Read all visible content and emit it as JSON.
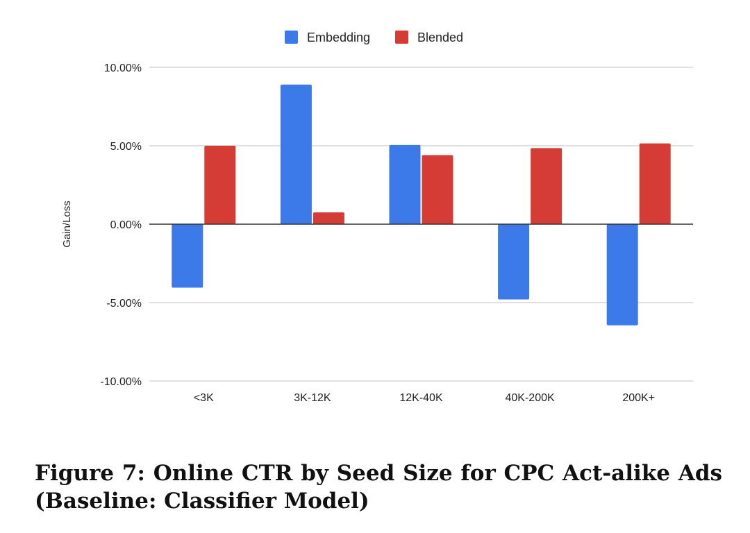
{
  "chart_data": {
    "type": "bar",
    "title": "",
    "xlabel": "",
    "ylabel": "Gain/Loss",
    "categories": [
      "<3K",
      "3K-12K",
      "12K-40K",
      "40K-200K",
      "200K+"
    ],
    "series": [
      {
        "name": "Embedding",
        "color": "#3b7ae8",
        "values": [
          -4.05,
          8.9,
          5.05,
          -4.8,
          -6.45
        ]
      },
      {
        "name": "Blended",
        "color": "#d53c35",
        "values": [
          5.0,
          0.75,
          4.4,
          4.85,
          5.15
        ]
      }
    ],
    "ylim": [
      -10,
      10
    ],
    "yticks": [
      10,
      5,
      0,
      -5,
      -10
    ],
    "ytick_labels": [
      "10.00%",
      "5.00%",
      "0.00%",
      "-5.00%",
      "-10.00%"
    ],
    "grid": true,
    "legend_position": "top-center"
  },
  "caption": {
    "line1": "Figure 7: Online CTR by Seed Size for CPC Act-alike Ads",
    "line2": "(Baseline: Classifier Model)"
  }
}
